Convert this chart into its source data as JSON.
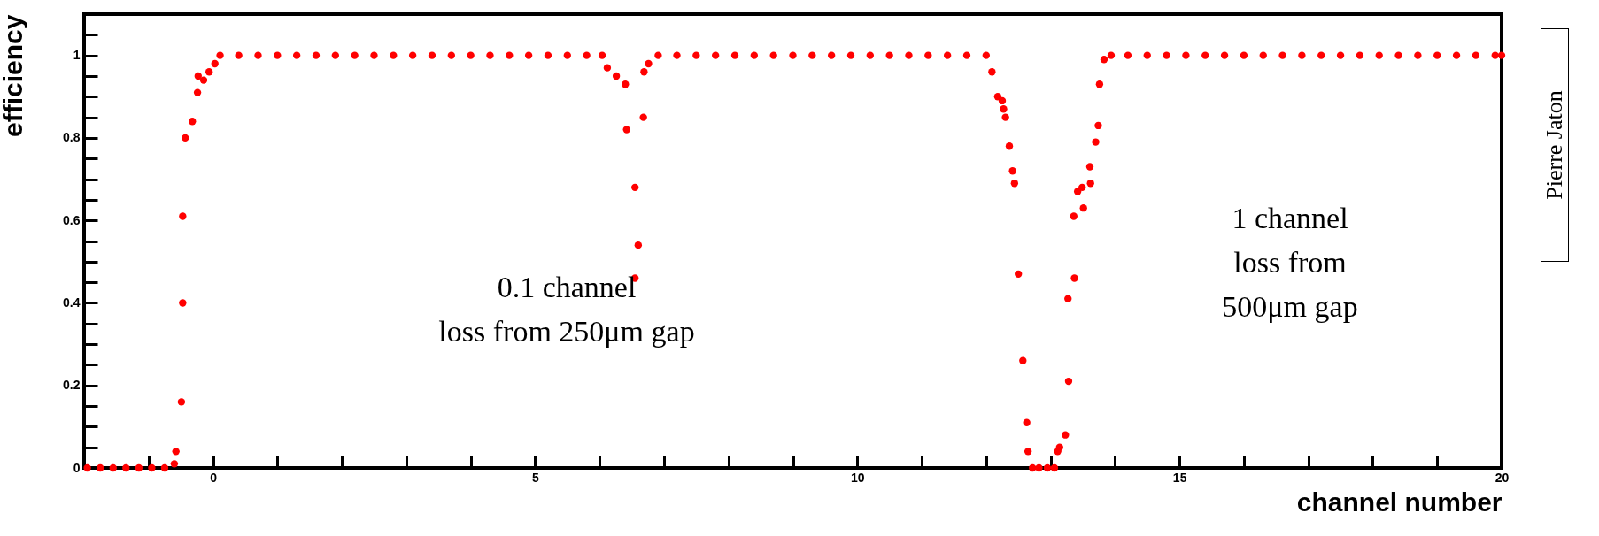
{
  "chart_data": {
    "type": "scatter",
    "xlabel": "channel number",
    "ylabel": "efficiency",
    "xlim": [
      -2,
      20
    ],
    "ylim": [
      0,
      1.1
    ],
    "xticks": [
      {
        "value": -1,
        "label": null
      },
      0,
      {
        "value": 1,
        "label": null
      },
      {
        "value": 2,
        "label": null
      },
      {
        "value": 3,
        "label": null
      },
      {
        "value": 4,
        "label": null
      },
      5,
      {
        "value": 6,
        "label": null
      },
      {
        "value": 7,
        "label": null
      },
      {
        "value": 8,
        "label": null
      },
      {
        "value": 9,
        "label": null
      },
      10,
      {
        "value": 11,
        "label": null
      },
      {
        "value": 12,
        "label": null
      },
      {
        "value": 13,
        "label": null
      },
      {
        "value": 14,
        "label": null
      },
      15,
      {
        "value": 16,
        "label": null
      },
      {
        "value": 17,
        "label": null
      },
      {
        "value": 18,
        "label": null
      },
      {
        "value": 19,
        "label": null
      },
      20
    ],
    "yticks": [
      0,
      {
        "value": 0.05,
        "label": null
      },
      {
        "value": 0.1,
        "label": null
      },
      {
        "value": 0.15,
        "label": null
      },
      0.2,
      {
        "value": 0.25,
        "label": null
      },
      {
        "value": 0.3,
        "label": null
      },
      {
        "value": 0.35,
        "label": null
      },
      0.4,
      {
        "value": 0.45,
        "label": null
      },
      {
        "value": 0.5,
        "label": null
      },
      {
        "value": 0.55,
        "label": null
      },
      0.6,
      {
        "value": 0.65,
        "label": null
      },
      {
        "value": 0.7,
        "label": null
      },
      {
        "value": 0.75,
        "label": null
      },
      0.8,
      {
        "value": 0.85,
        "label": null
      },
      {
        "value": 0.9,
        "label": null
      },
      {
        "value": 0.95,
        "label": null
      },
      1,
      {
        "value": 1.05,
        "label": null
      }
    ],
    "grid": false,
    "marker": "circle",
    "series": [
      {
        "color": "#ff0000",
        "x": [
          -1.95,
          -1.75,
          -1.55,
          -1.35,
          -1.15,
          -0.95,
          -0.75,
          -0.6,
          -0.575,
          -0.49,
          -0.47,
          -0.47,
          -0.43,
          -0.32,
          -0.24,
          -0.23,
          -0.145,
          -0.06,
          0.03,
          0.11,
          0.4,
          0.7,
          1.0,
          1.3,
          1.6,
          1.9,
          2.2,
          2.5,
          2.8,
          3.1,
          3.4,
          3.7,
          4.0,
          4.3,
          4.6,
          4.9,
          5.2,
          5.5,
          5.8,
          6.04,
          6.12,
          6.26,
          6.4,
          6.42,
          6.55,
          6.6,
          6.55,
          6.68,
          6.69,
          6.76,
          6.91,
          7.2,
          7.5,
          7.8,
          8.1,
          8.4,
          8.7,
          9.0,
          9.3,
          9.6,
          9.9,
          10.2,
          10.5,
          10.8,
          11.1,
          11.4,
          11.7,
          12.0,
          12.09,
          12.18,
          12.25,
          12.27,
          12.3,
          12.36,
          12.41,
          12.44,
          12.5,
          12.57,
          12.63,
          12.65,
          12.72,
          12.82,
          12.95,
          13.06,
          13.11,
          13.14,
          13.23,
          13.28,
          13.27,
          13.37,
          13.36,
          13.51,
          13.42,
          13.49,
          13.62,
          13.61,
          13.7,
          13.74,
          13.76,
          13.83,
          13.94,
          14.2,
          14.5,
          14.8,
          15.1,
          15.4,
          15.7,
          16.0,
          16.3,
          16.6,
          16.9,
          17.2,
          17.5,
          17.8,
          18.1,
          18.4,
          18.7,
          19.0,
          19.3,
          19.6,
          19.9,
          20.0
        ],
        "values": [
          0,
          0,
          0,
          0,
          0,
          0,
          0,
          0.01,
          0.04,
          0.16,
          0.4,
          0.61,
          0.8,
          0.84,
          0.91,
          0.95,
          0.94,
          0.96,
          0.98,
          1,
          1,
          1,
          1,
          1,
          1,
          1,
          1,
          1,
          1,
          1,
          1,
          1,
          1,
          1,
          1,
          1,
          1,
          1,
          1,
          1,
          0.97,
          0.95,
          0.93,
          0.82,
          0.68,
          0.54,
          0.46,
          0.85,
          0.96,
          0.98,
          1,
          1,
          1,
          1,
          1,
          1,
          1,
          1,
          1,
          1,
          1,
          1,
          1,
          1,
          1,
          1,
          1,
          1,
          0.96,
          0.9,
          0.89,
          0.87,
          0.85,
          0.78,
          0.72,
          0.69,
          0.47,
          0.26,
          0.11,
          0.04,
          0,
          0,
          0,
          0,
          0.04,
          0.05,
          0.08,
          0.21,
          0.41,
          0.46,
          0.61,
          0.63,
          0.67,
          0.68,
          0.69,
          0.73,
          0.79,
          0.83,
          0.93,
          0.99,
          1,
          1,
          1,
          1,
          1,
          1,
          1,
          1,
          1,
          1,
          1,
          1,
          1,
          1,
          1,
          1,
          1,
          1,
          1,
          1,
          1,
          1
        ]
      }
    ],
    "annotations": [
      "0.1 channel\nloss from 250μm gap",
      "1 channel\nloss from\n500μm gap",
      "Pierre Jaton"
    ]
  }
}
